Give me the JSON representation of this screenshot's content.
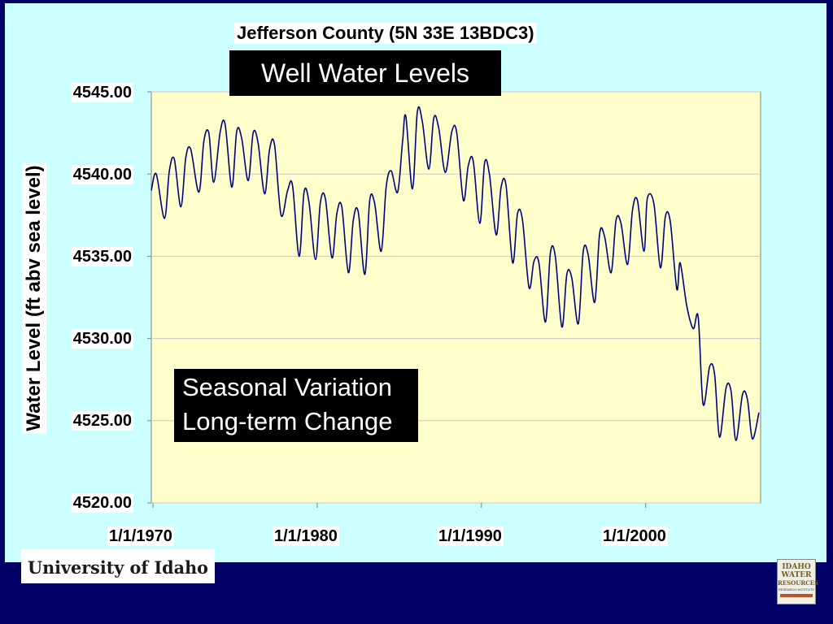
{
  "colors": {
    "background": "#000066",
    "panel": "#ccffff",
    "plot_area": "#ffffcc",
    "series": "#000080"
  },
  "annotations": {
    "subtitle": "Well Water Levels",
    "box_line1": "Seasonal Variation",
    "box_line2": "Long-term Change"
  },
  "logos": {
    "university": "University of Idaho",
    "institute_line1": "IDAHO",
    "institute_line2": "WATER",
    "institute_line3": "RESOURCES",
    "institute_line4": "RESEARCH INSTITUTE"
  },
  "chart_data": {
    "type": "line",
    "title": "Jefferson County (5N 33E 13BDC3)",
    "xlabel": "",
    "ylabel": "Water Level (ft abv sea level)",
    "xlim": [
      1969.9,
      2007.0
    ],
    "ylim": [
      4520.0,
      4545.0
    ],
    "x_ticks": [
      "1/1/1970",
      "1/1/1980",
      "1/1/1990",
      "1/1/2000"
    ],
    "y_ticks": [
      "4520.00",
      "4525.00",
      "4530.00",
      "4535.00",
      "4540.00",
      "4545.00"
    ],
    "grid": true,
    "legend": "none",
    "series": [
      {
        "x": [
          1969.9,
          1970.2,
          1970.7,
          1971.0,
          1971.3,
          1971.7,
          1972.0,
          1972.3,
          1972.8,
          1973.1,
          1973.4,
          1973.7,
          1974.1,
          1974.4,
          1974.8,
          1975.1,
          1975.4,
          1975.8,
          1976.1,
          1976.4,
          1976.8,
          1977.1,
          1977.4,
          1977.8,
          1978.2,
          1978.5,
          1978.9,
          1979.2,
          1979.5,
          1979.9,
          1980.2,
          1980.5,
          1980.9,
          1981.2,
          1981.5,
          1981.9,
          1982.2,
          1982.5,
          1982.9,
          1983.2,
          1983.5,
          1983.9,
          1984.2,
          1984.5,
          1984.9,
          1985.2,
          1985.4,
          1985.8,
          1986.1,
          1986.4,
          1986.8,
          1987.1,
          1987.4,
          1987.8,
          1988.2,
          1988.5,
          1988.9,
          1989.2,
          1989.5,
          1989.9,
          1990.2,
          1990.5,
          1990.9,
          1991.2,
          1991.5,
          1991.9,
          1992.2,
          1992.5,
          1992.9,
          1993.2,
          1993.5,
          1993.9,
          1994.2,
          1994.5,
          1994.9,
          1995.2,
          1995.5,
          1995.9,
          1996.2,
          1996.5,
          1996.9,
          1997.2,
          1997.5,
          1997.9,
          1998.2,
          1998.5,
          1998.9,
          1999.2,
          1999.5,
          1999.9,
          2000.1,
          2000.5,
          2000.9,
          2001.2,
          2001.5,
          2001.9,
          2002.1,
          2002.5,
          2002.9,
          2003.2,
          2003.5,
          2003.9,
          2004.2,
          2004.5,
          2004.9,
          2005.2,
          2005.5,
          2005.9,
          2006.2,
          2006.5,
          2006.9
        ],
        "values": [
          4539.0,
          4540.0,
          4537.3,
          4540.2,
          4540.9,
          4538.0,
          4541.0,
          4541.5,
          4538.9,
          4542.0,
          4542.5,
          4539.5,
          4542.6,
          4543.0,
          4539.2,
          4542.6,
          4542.2,
          4539.6,
          4542.5,
          4541.9,
          4538.8,
          4541.5,
          4541.8,
          4537.5,
          4539.0,
          4539.3,
          4535.0,
          4538.9,
          4538.3,
          4534.8,
          4538.3,
          4538.5,
          4534.9,
          4537.6,
          4538.0,
          4534.0,
          4537.2,
          4537.7,
          4533.9,
          4538.4,
          4538.2,
          4535.3,
          4539.2,
          4540.2,
          4538.9,
          4542.0,
          4543.5,
          4539.1,
          4543.8,
          4543.2,
          4540.3,
          4543.4,
          4542.8,
          4540.1,
          4542.6,
          4542.5,
          4538.4,
          4540.5,
          4540.8,
          4537.0,
          4540.7,
          4539.9,
          4536.3,
          4539.2,
          4539.3,
          4534.6,
          4537.6,
          4537.2,
          4533.1,
          4534.7,
          4534.6,
          4531.0,
          4535.2,
          4535.0,
          4530.7,
          4533.9,
          4533.7,
          4530.9,
          4535.3,
          4535.1,
          4532.2,
          4536.4,
          4536.2,
          4534.0,
          4537.2,
          4537.0,
          4534.5,
          4537.8,
          4538.4,
          4535.3,
          4538.5,
          4538.2,
          4534.3,
          4537.4,
          4537.1,
          4533.0,
          4534.6,
          4532.0,
          4530.6,
          4531.3,
          4526.0,
          4528.3,
          4527.8,
          4524.0,
          4527.0,
          4526.8,
          4523.8,
          4526.6,
          4526.3,
          4523.9,
          4525.5
        ]
      }
    ]
  }
}
